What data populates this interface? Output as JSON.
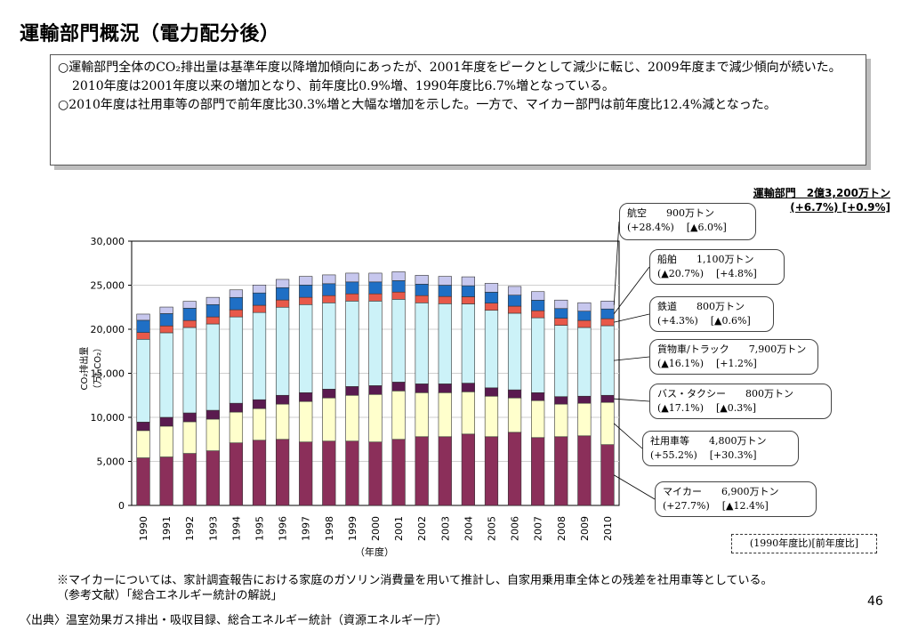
{
  "title": "運輸部門概況（電力配分後）",
  "summary_box": {
    "para1": "○運輸部門全体のCO₂排出量は基準年度以降増加傾向にあったが、2001年度をピークとして減少に転じ、2009年度まで減少傾向が続いた。2010年度は2001年度以来の増加となり、前年度比0.9%増、1990年度比6.7%増となっている。",
    "para2": "○2010年度は社用車等の部門で前年度比30.3%増と大幅な増加を示した。一方で、マイカー部門は前年度比12.4%減となった。"
  },
  "total": {
    "line1": "運輸部門　2億3,200万トン",
    "line2": "(+6.7%) [+0.9%]"
  },
  "callouts": [
    {
      "name": "航空",
      "value": "900万トン",
      "vs1990": "(+28.4%)",
      "vsPrev": "[▲6.0%]"
    },
    {
      "name": "船舶",
      "value": "1,100万トン",
      "vs1990": "(▲20.7%)",
      "vsPrev": "[+4.8%]"
    },
    {
      "name": "鉄道",
      "value": "800万トン",
      "vs1990": "(+4.3%)",
      "vsPrev": "[▲0.6%]"
    },
    {
      "name": "貨物車/トラック",
      "value": "7,900万トン",
      "vs1990": "(▲16.1%)",
      "vsPrev": "[+1.2%]"
    },
    {
      "name": "バス・タクシー",
      "value": "800万トン",
      "vs1990": "(▲17.1%)",
      "vsPrev": "[▲0.3%]"
    },
    {
      "name": "社用車等",
      "value": "4,800万トン",
      "vs1990": "(+55.2%)",
      "vsPrev": "[+30.3%]"
    },
    {
      "name": "マイカー",
      "value": "6,900万トン",
      "vs1990": "(+27.7%)",
      "vsPrev": "[▲12.4%]"
    }
  ],
  "legend_note": "(1990年度比)[前年度比]",
  "footnote1": "※マイカーについては、家計調査報告における家庭のガソリン消費量を用いて推計し、自家用乗用車全体との残差を社用車等としている。",
  "footnote2": "（参考文献）「総合エネルギー統計の解説」",
  "page_number": "46",
  "source": "〈出典〉温室効果ガス排出・吸収目録、総合エネルギー統計（資源エネルギー庁）",
  "chart_data": {
    "type": "bar",
    "stacked": true,
    "ylabel_line1": "CO₂排出量",
    "ylabel_line2": "（万t-CO₂）",
    "xlabel": "（年度）",
    "ylim": [
      0,
      30000
    ],
    "yticks": [
      "0",
      "5,000",
      "10,000",
      "15,000",
      "20,000",
      "25,000",
      "30,000"
    ],
    "categories": [
      "1990",
      "1991",
      "1992",
      "1993",
      "1994",
      "1995",
      "1996",
      "1997",
      "1998",
      "1999",
      "2000",
      "2001",
      "2002",
      "2003",
      "2004",
      "2005",
      "2006",
      "2007",
      "2008",
      "2009",
      "2010"
    ],
    "series": [
      {
        "name": "マイカー",
        "color": "#8b2f5a",
        "values": [
          5400,
          5500,
          5900,
          6200,
          7100,
          7400,
          7500,
          7200,
          7300,
          7300,
          7200,
          7500,
          7800,
          7800,
          8100,
          7800,
          8300,
          7700,
          7800,
          7900,
          6900
        ]
      },
      {
        "name": "社用車等",
        "color": "#ffffcc",
        "values": [
          3100,
          3500,
          3600,
          3600,
          3500,
          3600,
          4000,
          4600,
          4900,
          5200,
          5400,
          5500,
          5000,
          5000,
          4800,
          4600,
          3900,
          4200,
          3700,
          3700,
          4800
        ]
      },
      {
        "name": "バス・タクシー",
        "color": "#5a1a4f",
        "values": [
          960,
          1000,
          1000,
          1000,
          1000,
          1000,
          1000,
          1000,
          1000,
          1000,
          1000,
          1000,
          1000,
          1000,
          980,
          950,
          920,
          900,
          850,
          800,
          800
        ]
      },
      {
        "name": "貨物車/トラック",
        "color": "#ccf2f8",
        "values": [
          9400,
          9600,
          9700,
          9800,
          9800,
          9900,
          10000,
          10000,
          9800,
          9700,
          9600,
          9400,
          9200,
          9100,
          9000,
          8800,
          8700,
          8500,
          8100,
          7800,
          7900
        ]
      },
      {
        "name": "鉄道",
        "color": "#e8594a",
        "values": [
          770,
          780,
          790,
          800,
          810,
          820,
          820,
          820,
          820,
          820,
          820,
          820,
          820,
          820,
          810,
          810,
          800,
          800,
          800,
          800,
          800
        ]
      },
      {
        "name": "船舶",
        "color": "#1f6fc5",
        "values": [
          1390,
          1400,
          1400,
          1400,
          1400,
          1400,
          1400,
          1400,
          1350,
          1350,
          1350,
          1300,
          1300,
          1280,
          1250,
          1250,
          1250,
          1200,
          1100,
          1050,
          1100
        ]
      },
      {
        "name": "航空",
        "color": "#c7c7ee",
        "values": [
          700,
          740,
          780,
          820,
          860,
          900,
          940,
          980,
          1000,
          1000,
          1000,
          1000,
          1000,
          1000,
          1010,
          1000,
          990,
          970,
          960,
          960,
          900
        ]
      }
    ]
  }
}
